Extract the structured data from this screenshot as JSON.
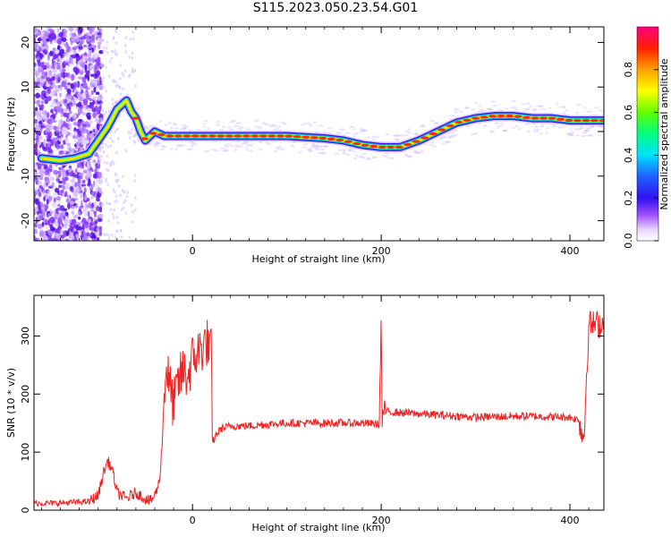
{
  "title": "S115.2023.050.23.54.G01",
  "chart_data": [
    {
      "type": "heatmap",
      "xlabel": "Height of straight line (km)",
      "ylabel": "Frequency (Hz)",
      "xlim": [
        -168,
        436
      ],
      "ylim": [
        -24.5,
        23.5
      ],
      "xticks": [
        0,
        200,
        400
      ],
      "yticks": [
        20,
        10,
        0,
        -10,
        -20
      ],
      "ridge": {
        "x": [
          -160,
          -140,
          -125,
          -110,
          -100,
          -90,
          -80,
          -75,
          -70,
          -65,
          -60,
          -55,
          -50,
          -45,
          -40,
          -35,
          -30,
          -20,
          0,
          50,
          100,
          140,
          160,
          180,
          200,
          210,
          220,
          240,
          260,
          280,
          300,
          320,
          340,
          360,
          380,
          400,
          436
        ],
        "y": [
          -6,
          -6.5,
          -6,
          -5,
          -2,
          1,
          5,
          6,
          7,
          4.5,
          3,
          0,
          -2,
          -1,
          0,
          -0.5,
          -1,
          -1,
          -1,
          -1,
          -1,
          -1.5,
          -2,
          -3,
          -3.5,
          -3.5,
          -3.5,
          -2,
          0,
          2,
          3,
          3.5,
          3.5,
          3,
          3,
          2.5,
          2.5
        ]
      },
      "colorbar": {
        "label": "Normalized spectral amplitude",
        "ticks": [
          "0.0",
          "0.2",
          "0.4",
          "0.6",
          "0.8"
        ],
        "range": [
          0,
          1
        ]
      }
    },
    {
      "type": "line",
      "xlabel": "Height of straight line (km)",
      "ylabel": "SNR (10 * v/v)",
      "xlim": [
        -168,
        436
      ],
      "ylim": [
        0,
        370
      ],
      "xticks": [
        0,
        200,
        400
      ],
      "yticks": [
        0,
        100,
        200,
        300
      ],
      "series": [
        {
          "color": "#ee2222",
          "x": [
            -168,
            -150,
            -130,
            -110,
            -100,
            -95,
            -90,
            -85,
            -80,
            -70,
            -60,
            -50,
            -45,
            -40,
            -35,
            -32,
            -30,
            -28,
            -25,
            -20,
            -15,
            -10,
            -5,
            0,
            5,
            10,
            15,
            20,
            21,
            25,
            30,
            40,
            60,
            80,
            100,
            120,
            140,
            160,
            180,
            198,
            200,
            201,
            202,
            203,
            220,
            250,
            300,
            350,
            400,
            410,
            412,
            415,
            418,
            420,
            436
          ],
          "y": [
            12,
            12,
            13,
            15,
            25,
            60,
            85,
            70,
            30,
            20,
            30,
            20,
            15,
            25,
            50,
            120,
            200,
            250,
            220,
            180,
            220,
            240,
            230,
            260,
            270,
            280,
            290,
            270,
            115,
            130,
            140,
            145,
            145,
            148,
            150,
            150,
            150,
            150,
            150,
            148,
            340,
            152,
            165,
            170,
            168,
            165,
            160,
            162,
            160,
            155,
            135,
            125,
            250,
            320,
            320
          ]
        }
      ]
    }
  ]
}
